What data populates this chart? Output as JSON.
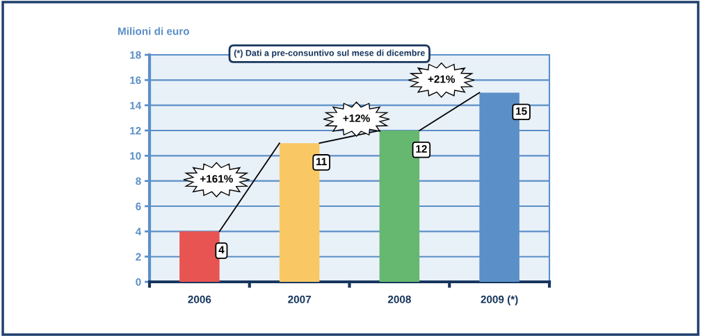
{
  "chart_data": {
    "type": "bar",
    "ylabel": "Milioni di euro",
    "categories": [
      "2006",
      "2007",
      "2008",
      "2009 (*)"
    ],
    "values": [
      4,
      11,
      12,
      15
    ],
    "colors": [
      "#e85452",
      "#f9c865",
      "#66b76f",
      "#5b8fc7"
    ],
    "ylim": [
      0,
      18
    ],
    "yticks": [
      0,
      2,
      4,
      6,
      8,
      10,
      12,
      14,
      16,
      18
    ],
    "grid": "y",
    "data_labels": true,
    "annotations": [
      "(*) Dati a pre-consuntivo sul mese di dicembre",
      "+161%",
      {
        "text": "+12%",
        "x": "2008",
        "y": 12
      },
      "+21%"
    ]
  }
}
